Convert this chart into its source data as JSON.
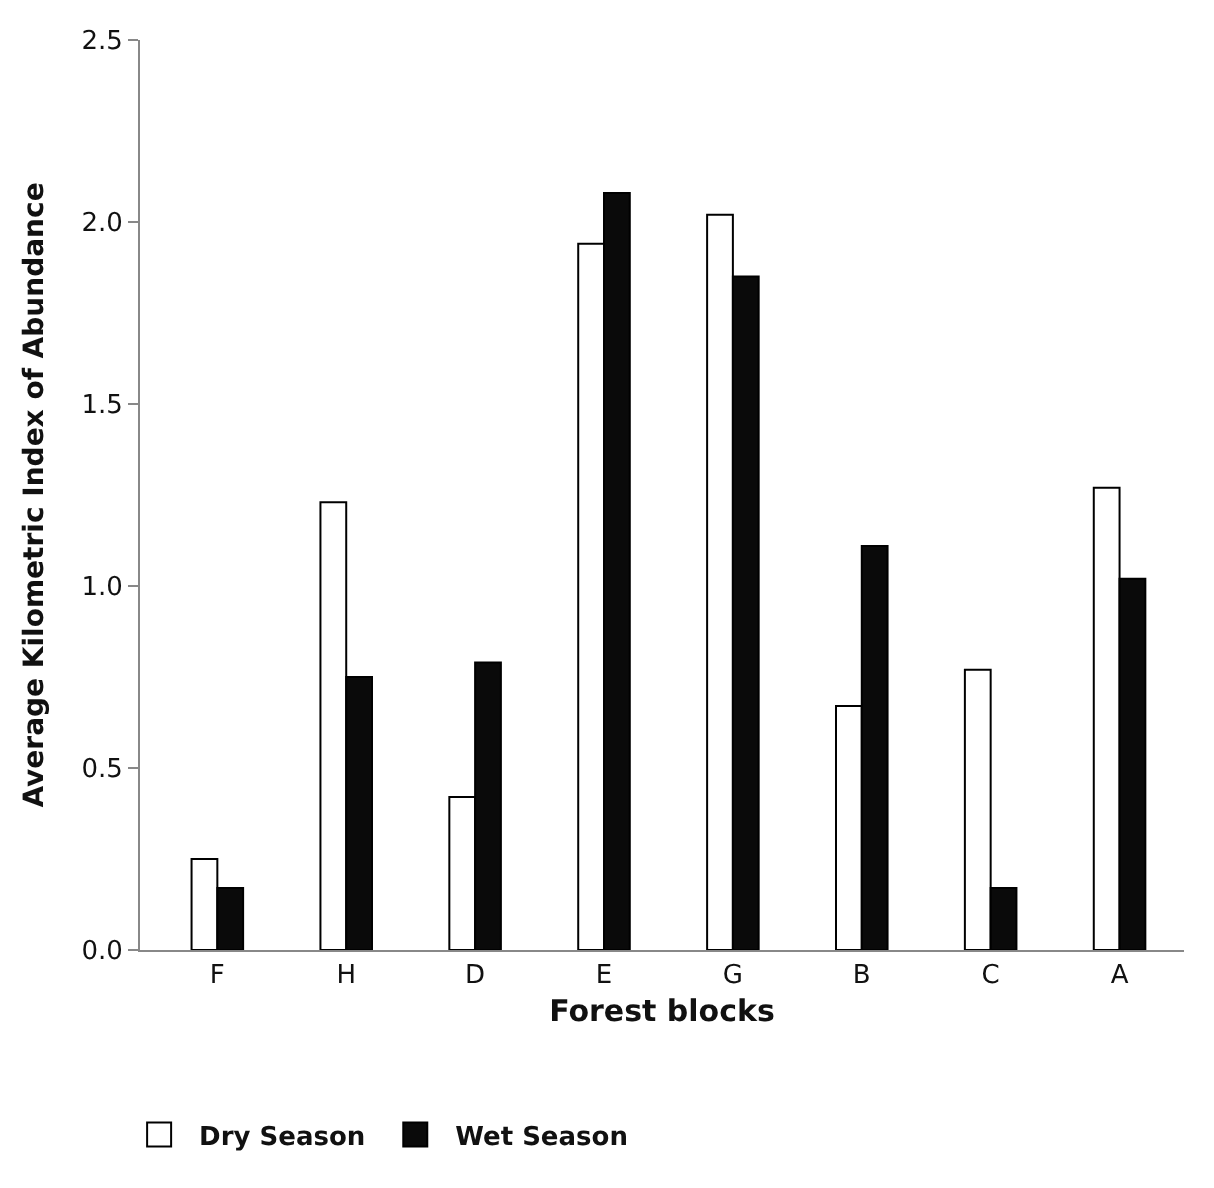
{
  "chart_data": {
    "type": "bar",
    "xlabel": "Forest blocks",
    "ylabel": "Average Kilometric Index of Abundance",
    "categories": [
      "F",
      "H",
      "D",
      "E",
      "G",
      "B",
      "C",
      "A"
    ],
    "series": [
      {
        "name": "Dry Season",
        "color": "#ffffff",
        "values": [
          0.25,
          1.23,
          0.42,
          1.94,
          2.02,
          0.67,
          0.77,
          1.27
        ]
      },
      {
        "name": "Wet Season",
        "color": "#0a0a0a",
        "values": [
          0.17,
          0.75,
          0.79,
          2.08,
          1.85,
          1.11,
          0.17,
          1.02
        ]
      }
    ],
    "ylim": [
      0,
      2.5
    ],
    "yticks": [
      {
        "value": 0,
        "label": "0.0"
      },
      0.5,
      {
        "value": 1,
        "label": "1.0"
      },
      1.5,
      {
        "value": 2,
        "label": "2.0"
      },
      2.5
    ],
    "legend": "bottom left"
  }
}
